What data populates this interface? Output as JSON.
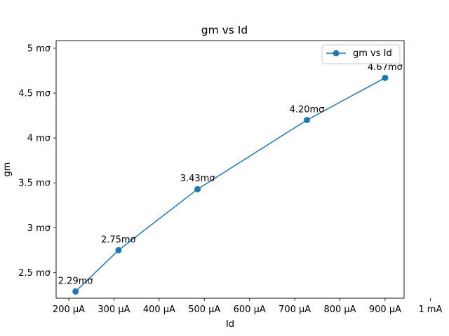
{
  "chart_data": {
    "type": "line",
    "title": "gm vs Id",
    "xlabel": "Id",
    "ylabel": "gm",
    "xlim": [
      0.000172,
      0.000942
    ],
    "ylim": [
      2.215,
      5.085
    ],
    "x_ticks": [
      {
        "value": 0.0002,
        "label": "200 µA"
      },
      {
        "value": 0.0003,
        "label": "300 µA"
      },
      {
        "value": 0.0004,
        "label": "400 µA"
      },
      {
        "value": 0.0005,
        "label": "500 µA"
      },
      {
        "value": 0.0006,
        "label": "600 µA"
      },
      {
        "value": 0.0007,
        "label": "700 µA"
      },
      {
        "value": 0.0008,
        "label": "800 µA"
      },
      {
        "value": 0.0009,
        "label": "900 µA"
      },
      {
        "value": 0.001,
        "label": "1 mA"
      }
    ],
    "y_ticks": [
      {
        "value": 2.5,
        "label": "2.5 mσ"
      },
      {
        "value": 3.0,
        "label": "3 mσ"
      },
      {
        "value": 3.5,
        "label": "3.5 mσ"
      },
      {
        "value": 4.0,
        "label": "4 mσ"
      },
      {
        "value": 4.5,
        "label": "4.5 mσ"
      },
      {
        "value": 5.0,
        "label": "5 mσ"
      }
    ],
    "grid": false,
    "legend_position": "top-right",
    "series": [
      {
        "name": "gm vs Id",
        "color": "#1f77b4",
        "x": [
          0.000215,
          0.00031,
          0.000485,
          0.000727,
          0.0009
        ],
        "y": [
          2.29,
          2.75,
          3.43,
          4.2,
          4.67
        ],
        "labels": [
          "2.29mσ",
          "2.75mσ",
          "3.43mσ",
          "4.20mσ",
          "4.67mσ"
        ]
      }
    ]
  }
}
